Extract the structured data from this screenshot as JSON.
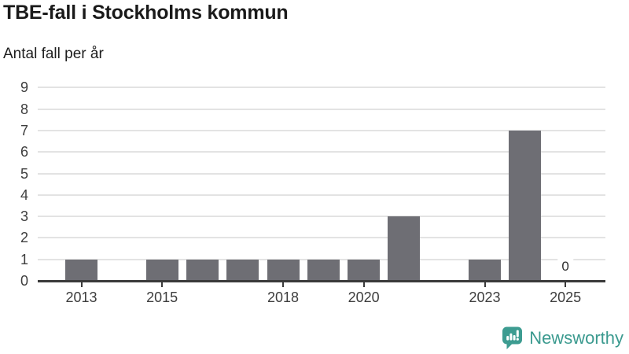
{
  "header": {
    "title": "TBE-fall i Stockholms kommun",
    "subtitle": "Antal fall per år"
  },
  "chart_data": {
    "type": "bar",
    "title": "TBE-fall i Stockholms kommun",
    "subtitle": "Antal fall per år",
    "categories": [
      "2013",
      "2014",
      "2015",
      "2016",
      "2017",
      "2018",
      "2019",
      "2020",
      "2021",
      "2022",
      "2023",
      "2024",
      "2025"
    ],
    "values": [
      1,
      0,
      1,
      1,
      1,
      1,
      1,
      1,
      3,
      0,
      1,
      7,
      0
    ],
    "x_tick_labels": [
      "2013",
      "2015",
      "2018",
      "2020",
      "2023",
      "2025"
    ],
    "y_ticks": [
      0,
      1,
      2,
      3,
      4,
      5,
      6,
      7,
      8,
      9
    ],
    "ylim": [
      0,
      9
    ],
    "xlabel": "",
    "ylabel": "Antal fall per år",
    "grid": "horizontal",
    "legend": "none",
    "value_labels": [
      {
        "category": "2025",
        "text": "0"
      }
    ],
    "bar_color": "#6e6e74",
    "grid_color": "#e3e3e3",
    "axis_color": "#3a3a3a",
    "tick_label_color": "#3d3d3d"
  },
  "footer": {
    "brand": "Newsworthy",
    "brand_color": "#3b9a8f",
    "logo_icon": "newsworthy-speech-bubble-bar-chart-icon"
  }
}
